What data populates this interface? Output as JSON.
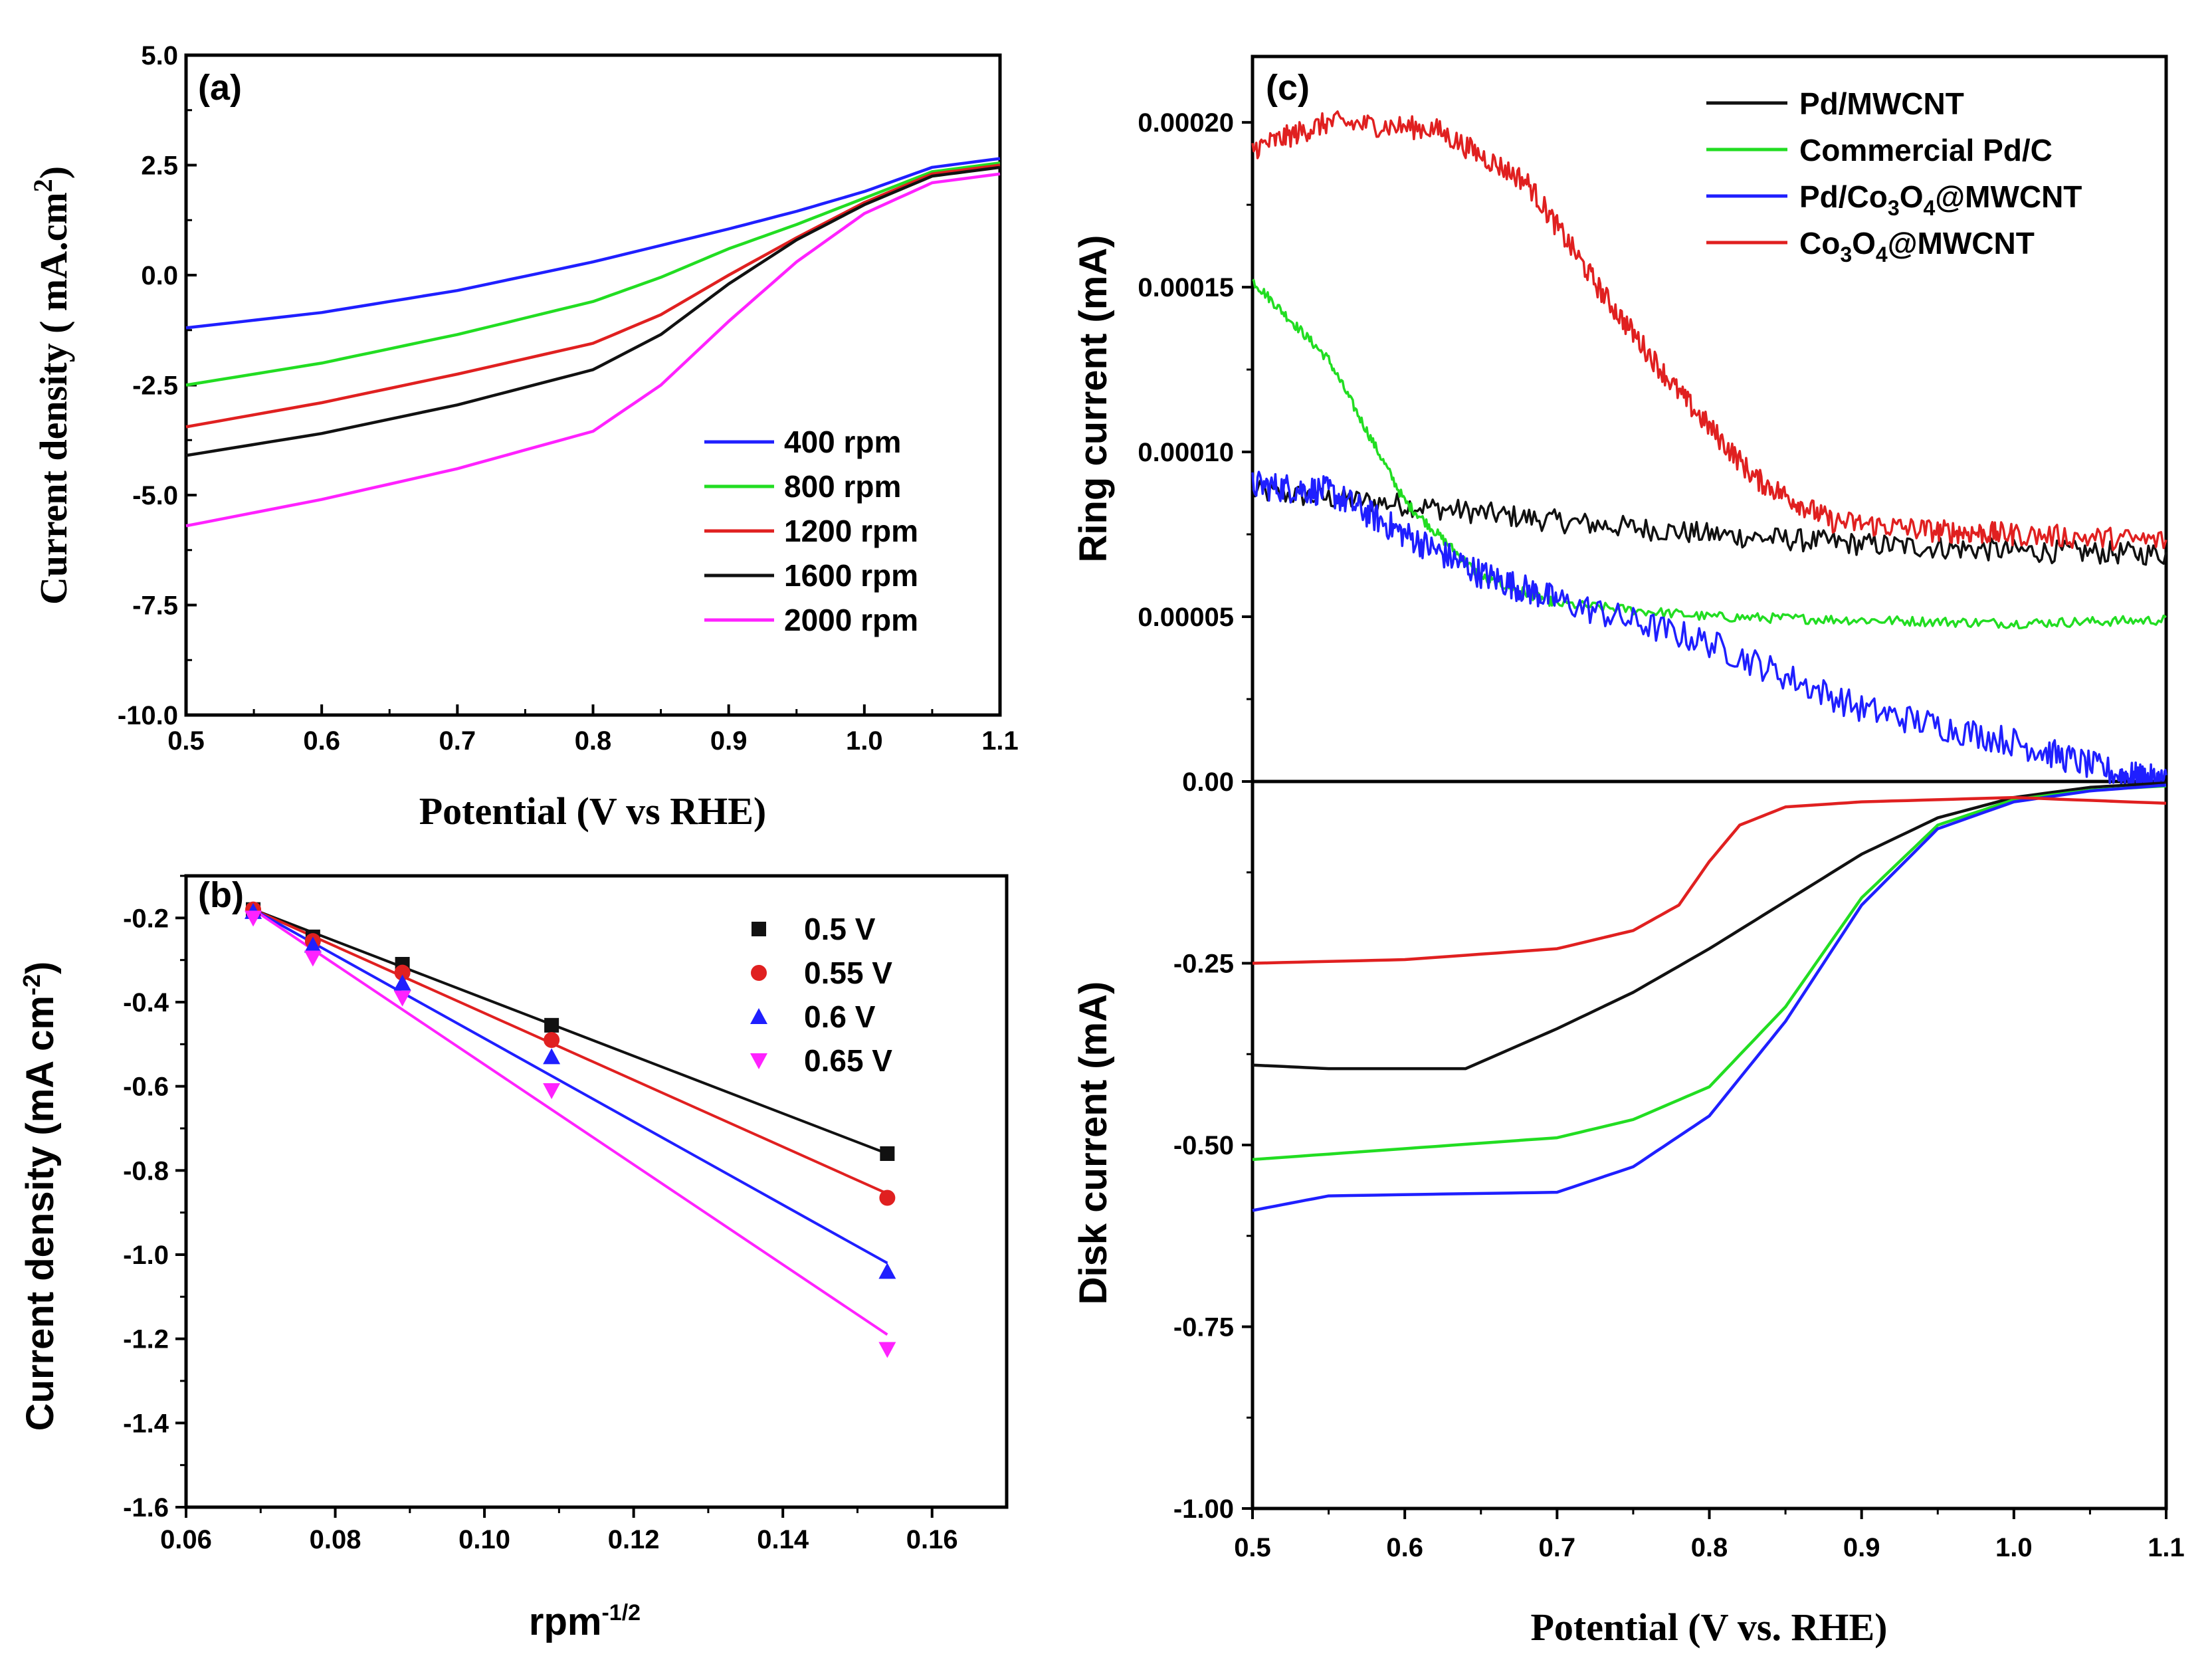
{
  "chart_data": [
    {
      "panel": "(a)",
      "type": "line",
      "xlabel": "Potential (V vs RHE)",
      "ylabel_main": "Current density ( mA.cm",
      "ylabel_sup": "2",
      "ylabel_end": ")",
      "xlim": [
        0.5,
        1.1
      ],
      "ylim": [
        -10.0,
        5.0
      ],
      "xticks": [
        0.5,
        0.6,
        0.7,
        0.8,
        0.9,
        1.0,
        1.1
      ],
      "xtick_labels": [
        "0.5",
        "0.6",
        "0.7",
        "0.8",
        "0.9",
        "1.0",
        "1.1"
      ],
      "yticks": [
        5.0,
        2.5,
        0.0,
        -2.5,
        -5.0,
        -7.5,
        -10.0
      ],
      "ytick_labels": [
        "5.0",
        "2.5",
        "0.0",
        "-2.5",
        "-5.0",
        "-7.5",
        "-10.0"
      ],
      "legend_position": "lower-right",
      "series": [
        {
          "name": "400 rpm",
          "color": "#1f1fff",
          "points": [
            [
              0.5,
              -1.2
            ],
            [
              0.6,
              -0.85
            ],
            [
              0.7,
              -0.35
            ],
            [
              0.8,
              0.3
            ],
            [
              0.9,
              1.05
            ],
            [
              0.95,
              1.45
            ],
            [
              1.0,
              1.9
            ],
            [
              1.05,
              2.45
            ],
            [
              1.1,
              2.65
            ]
          ]
        },
        {
          "name": "800 rpm",
          "color": "#22dd22",
          "points": [
            [
              0.5,
              -2.5
            ],
            [
              0.6,
              -2.0
            ],
            [
              0.7,
              -1.35
            ],
            [
              0.8,
              -0.6
            ],
            [
              0.85,
              -0.05
            ],
            [
              0.9,
              0.6
            ],
            [
              0.95,
              1.15
            ],
            [
              1.0,
              1.75
            ],
            [
              1.05,
              2.35
            ],
            [
              1.1,
              2.55
            ]
          ]
        },
        {
          "name": "1200 rpm",
          "color": "#e02020",
          "points": [
            [
              0.5,
              -3.45
            ],
            [
              0.6,
              -2.9
            ],
            [
              0.7,
              -2.25
            ],
            [
              0.8,
              -1.55
            ],
            [
              0.85,
              -0.9
            ],
            [
              0.9,
              0.0
            ],
            [
              0.95,
              0.85
            ],
            [
              1.0,
              1.65
            ],
            [
              1.05,
              2.3
            ],
            [
              1.1,
              2.5
            ]
          ]
        },
        {
          "name": "1600 rpm",
          "color": "#111111",
          "points": [
            [
              0.5,
              -4.1
            ],
            [
              0.6,
              -3.6
            ],
            [
              0.7,
              -2.95
            ],
            [
              0.8,
              -2.15
            ],
            [
              0.85,
              -1.35
            ],
            [
              0.9,
              -0.2
            ],
            [
              0.95,
              0.8
            ],
            [
              1.0,
              1.6
            ],
            [
              1.05,
              2.25
            ],
            [
              1.1,
              2.45
            ]
          ]
        },
        {
          "name": "2000 rpm",
          "color": "#ff22ff",
          "points": [
            [
              0.5,
              -5.7
            ],
            [
              0.6,
              -5.1
            ],
            [
              0.7,
              -4.4
            ],
            [
              0.8,
              -3.55
            ],
            [
              0.85,
              -2.5
            ],
            [
              0.9,
              -1.05
            ],
            [
              0.95,
              0.3
            ],
            [
              1.0,
              1.4
            ],
            [
              1.05,
              2.1
            ],
            [
              1.1,
              2.3
            ]
          ]
        }
      ]
    },
    {
      "panel": "(b)",
      "type": "scatter",
      "xlabel_main": "rpm",
      "xlabel_sup": "-1/2",
      "ylabel_main": "Current density (mA cm",
      "ylabel_sup": "-2",
      "ylabel_end": ")",
      "xlim": [
        0.06,
        0.17
      ],
      "ylim": [
        -1.6,
        -0.1
      ],
      "xticks": [
        0.06,
        0.08,
        0.1,
        0.12,
        0.14,
        0.16
      ],
      "xtick_labels": [
        "0.06",
        "0.08",
        "0.10",
        "0.12",
        "0.14",
        "0.16"
      ],
      "yticks": [
        -0.2,
        -0.4,
        -0.6,
        -0.8,
        -1.0,
        -1.2,
        -1.4,
        -1.6
      ],
      "ytick_labels": [
        "-0.2",
        "-0.4",
        "-0.6",
        "-0.8",
        "-1.0",
        "-1.2",
        "-1.4",
        "-1.6"
      ],
      "legend_position": "top-right",
      "x": [
        0.069,
        0.077,
        0.089,
        0.109,
        0.154
      ],
      "series": [
        {
          "name": "0.5 V",
          "color": "#111111",
          "marker": "square",
          "values": [
            -0.18,
            -0.245,
            -0.31,
            -0.455,
            -0.76
          ],
          "fit": [
            [
              0.069,
              -0.18
            ],
            [
              0.154,
              -0.76
            ]
          ]
        },
        {
          "name": "0.55 V",
          "color": "#e02020",
          "marker": "circle",
          "values": [
            -0.18,
            -0.255,
            -0.33,
            -0.49,
            -0.865
          ],
          "fit": [
            [
              0.069,
              -0.18
            ],
            [
              0.154,
              -0.855
            ]
          ]
        },
        {
          "name": "0.6 V",
          "color": "#1f1fff",
          "marker": "triangle-up",
          "values": [
            -0.185,
            -0.265,
            -0.355,
            -0.53,
            -1.04
          ],
          "fit": [
            [
              0.069,
              -0.18
            ],
            [
              0.154,
              -1.02
            ]
          ]
        },
        {
          "name": "0.65 V",
          "color": "#ff22ff",
          "marker": "triangle-down",
          "values": [
            -0.2,
            -0.295,
            -0.39,
            -0.61,
            -1.225
          ],
          "fit": [
            [
              0.069,
              -0.18
            ],
            [
              0.154,
              -1.19
            ]
          ]
        }
      ]
    },
    {
      "panel": "(c)",
      "type": "line",
      "xlabel": "Potential (V vs. RHE)",
      "xlim": [
        0.5,
        1.1
      ],
      "xticks": [
        0.5,
        0.6,
        0.7,
        0.8,
        0.9,
        1.0,
        1.1
      ],
      "xtick_labels": [
        "0.5",
        "0.6",
        "0.7",
        "0.8",
        "0.9",
        "1.0",
        "1.1"
      ],
      "ring": {
        "ylabel": "Ring current (mA)",
        "ylim": [
          0.0,
          0.00022
        ],
        "yticks": [
          0.0002,
          0.00015,
          0.0001,
          5e-05,
          0.0
        ],
        "ytick_labels": [
          "0.00020",
          "0.00015",
          "0.00010",
          "0.00005",
          "0.00"
        ],
        "series": [
          {
            "name": "Pd/MWCNT",
            "color": "#111111",
            "noise": 3.5e-06,
            "points": [
              [
                0.5,
                8.8e-05
              ],
              [
                0.6,
                8.4e-05
              ],
              [
                0.7,
                7.9e-05
              ],
              [
                0.8,
                7.5e-05
              ],
              [
                0.9,
                7.2e-05
              ],
              [
                1.0,
                7e-05
              ],
              [
                1.1,
                6.9e-05
              ]
            ]
          },
          {
            "name": "Commercial Pd/C",
            "color": "#22dd22",
            "noise": 1.5e-06,
            "points": [
              [
                0.5,
                0.000152
              ],
              [
                0.55,
                0.000128
              ],
              [
                0.6,
                8.5e-05
              ],
              [
                0.65,
                6.2e-05
              ],
              [
                0.7,
                5.4e-05
              ],
              [
                0.8,
                5e-05
              ],
              [
                0.9,
                4.9e-05
              ],
              [
                1.0,
                4.8e-05
              ],
              [
                1.1,
                4.9e-05
              ]
            ]
          },
          {
            "name": "Pd/Co3O4@MWCNT",
            "label_main": "Pd/Co",
            "sub1": "3",
            "mid": "O",
            "sub2": "4",
            "label_end": "@MWCNT",
            "color": "#1f1fff",
            "noise": 4.5e-06,
            "points": [
              [
                0.5,
                9e-05
              ],
              [
                0.55,
                8.8e-05
              ],
              [
                0.6,
                7.5e-05
              ],
              [
                0.65,
                6.3e-05
              ],
              [
                0.7,
                5.5e-05
              ],
              [
                0.8,
                4.2e-05
              ],
              [
                0.9,
                2.2e-05
              ],
              [
                1.0,
                1.2e-05
              ],
              [
                1.07,
                2e-06
              ],
              [
                1.1,
                0.0
              ]
            ]
          },
          {
            "name": "Co3O4@MWCNT",
            "label_main": "Co",
            "sub1": "3",
            "mid": "O",
            "sub2": "4",
            "label_end": "@MWCNT",
            "color": "#e02020",
            "noise": 3.5e-06,
            "points": [
              [
                0.5,
                0.000192
              ],
              [
                0.55,
                0.0002
              ],
              [
                0.62,
                0.000198
              ],
              [
                0.68,
                0.000182
              ],
              [
                0.73,
                0.000148
              ],
              [
                0.78,
                0.000118
              ],
              [
                0.83,
                9.2e-05
              ],
              [
                0.88,
                7.9e-05
              ],
              [
                0.95,
                7.6e-05
              ],
              [
                1.0,
                7.5e-05
              ],
              [
                1.1,
                7.3e-05
              ]
            ]
          }
        ]
      },
      "disk": {
        "ylabel": "Disk current (mA)",
        "ylim": [
          -1.0,
          0.0
        ],
        "yticks": [
          -0.25,
          -0.5,
          -0.75,
          -1.0
        ],
        "ytick_labels": [
          "-0.25",
          "-0.50",
          "-0.75",
          "-1.00"
        ],
        "series": [
          {
            "name": "Pd/MWCNT",
            "color": "#111111",
            "points": [
              [
                0.5,
                -0.39
              ],
              [
                0.55,
                -0.395
              ],
              [
                0.64,
                -0.395
              ],
              [
                0.7,
                -0.34
              ],
              [
                0.75,
                -0.29
              ],
              [
                0.8,
                -0.23
              ],
              [
                0.85,
                -0.165
              ],
              [
                0.9,
                -0.1
              ],
              [
                0.95,
                -0.05
              ],
              [
                1.0,
                -0.022
              ],
              [
                1.05,
                -0.008
              ],
              [
                1.1,
                -0.002
              ]
            ]
          },
          {
            "name": "Commercial Pd/C",
            "color": "#22dd22",
            "points": [
              [
                0.5,
                -0.52
              ],
              [
                0.6,
                -0.505
              ],
              [
                0.7,
                -0.49
              ],
              [
                0.75,
                -0.465
              ],
              [
                0.8,
                -0.42
              ],
              [
                0.85,
                -0.31
              ],
              [
                0.9,
                -0.16
              ],
              [
                0.95,
                -0.06
              ],
              [
                1.0,
                -0.025
              ],
              [
                1.05,
                -0.012
              ],
              [
                1.1,
                -0.006
              ]
            ]
          },
          {
            "name": "Pd/Co3O4@MWCNT",
            "color": "#1f1fff",
            "points": [
              [
                0.5,
                -0.59
              ],
              [
                0.55,
                -0.57
              ],
              [
                0.7,
                -0.565
              ],
              [
                0.75,
                -0.53
              ],
              [
                0.8,
                -0.46
              ],
              [
                0.85,
                -0.33
              ],
              [
                0.9,
                -0.17
              ],
              [
                0.95,
                -0.065
              ],
              [
                1.0,
                -0.028
              ],
              [
                1.05,
                -0.013
              ],
              [
                1.1,
                -0.005
              ]
            ]
          },
          {
            "name": "Co3O4@MWCNT",
            "color": "#e02020",
            "points": [
              [
                0.5,
                -0.25
              ],
              [
                0.6,
                -0.245
              ],
              [
                0.7,
                -0.23
              ],
              [
                0.75,
                -0.205
              ],
              [
                0.78,
                -0.17
              ],
              [
                0.8,
                -0.11
              ],
              [
                0.82,
                -0.06
              ],
              [
                0.85,
                -0.035
              ],
              [
                0.9,
                -0.028
              ],
              [
                1.0,
                -0.022
              ],
              [
                1.1,
                -0.03
              ]
            ]
          }
        ]
      },
      "legend_position": "top-right"
    }
  ]
}
